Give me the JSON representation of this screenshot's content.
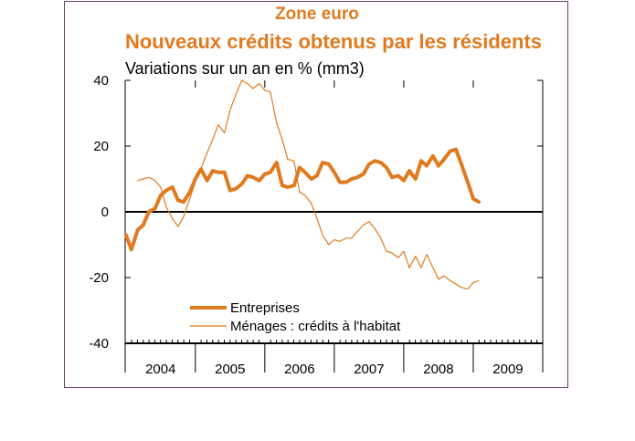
{
  "chart_data": {
    "type": "line",
    "title": "Zone euro",
    "subtitle": "Nouveaux crédits obtenus par les résidents",
    "ylabel": "Variations sur un an en % (mm3)",
    "ylim": [
      -40,
      40
    ],
    "yticks": [
      "40",
      "20",
      "0",
      "-20",
      "-40"
    ],
    "ytick_values": [
      40,
      20,
      0,
      -20,
      -40
    ],
    "xlim": [
      2003.99,
      2010.0
    ],
    "year_labels": [
      "2004",
      "2005",
      "2006",
      "2007",
      "2008",
      "2009"
    ],
    "grid": false,
    "legend_position": "bottom-left",
    "colors": {
      "series": "#e07a1f",
      "title": "#e07a1f",
      "frame": "#6b3a6b"
    },
    "series": [
      {
        "name": "Entreprises",
        "style": "thick",
        "x": [
          2004.0,
          2004.08,
          2004.17,
          2004.25,
          2004.33,
          2004.42,
          2004.5,
          2004.58,
          2004.67,
          2004.75,
          2004.83,
          2004.92,
          2005.0,
          2005.08,
          2005.17,
          2005.25,
          2005.33,
          2005.42,
          2005.5,
          2005.58,
          2005.67,
          2005.75,
          2005.83,
          2005.92,
          2006.0,
          2006.08,
          2006.17,
          2006.25,
          2006.33,
          2006.42,
          2006.5,
          2006.58,
          2006.67,
          2006.75,
          2006.83,
          2006.92,
          2007.0,
          2007.08,
          2007.17,
          2007.25,
          2007.33,
          2007.42,
          2007.5,
          2007.58,
          2007.67,
          2007.75,
          2007.83,
          2007.92,
          2008.0,
          2008.08,
          2008.17,
          2008.25,
          2008.33,
          2008.42,
          2008.5,
          2008.58,
          2008.67,
          2008.75,
          2008.83,
          2008.92,
          2009.0,
          2009.08
        ],
        "values": [
          -7,
          -11.5,
          -5.5,
          -4,
          0,
          1,
          5,
          6.5,
          7.5,
          3.5,
          3,
          6,
          10,
          13,
          9.5,
          12.5,
          12,
          12,
          6.5,
          7,
          8.5,
          11,
          10.5,
          9.5,
          11.5,
          12,
          15,
          8,
          7.5,
          8,
          13.5,
          12,
          10,
          11,
          15,
          14.5,
          12,
          9,
          9,
          10,
          10.5,
          11.5,
          14.5,
          15.5,
          15,
          13.5,
          10.5,
          11,
          9.5,
          12.5,
          10,
          15.5,
          14,
          17,
          14,
          16,
          18.5,
          19,
          14.5,
          9,
          4,
          3
        ]
      },
      {
        "name": "Ménages : crédits à l'habitat",
        "style": "thin",
        "x": [
          2004.17,
          2004.25,
          2004.33,
          2004.42,
          2004.5,
          2004.58,
          2004.67,
          2004.75,
          2004.83,
          2004.92,
          2005.0,
          2005.08,
          2005.17,
          2005.25,
          2005.33,
          2005.42,
          2005.5,
          2005.58,
          2005.67,
          2005.75,
          2005.83,
          2005.92,
          2006.0,
          2006.08,
          2006.17,
          2006.25,
          2006.33,
          2006.42,
          2006.5,
          2006.58,
          2006.67,
          2006.75,
          2006.83,
          2006.92,
          2007.0,
          2007.08,
          2007.17,
          2007.25,
          2007.33,
          2007.42,
          2007.5,
          2007.58,
          2007.67,
          2007.75,
          2007.83,
          2007.92,
          2008.0,
          2008.08,
          2008.17,
          2008.25,
          2008.33,
          2008.42,
          2008.5,
          2008.58,
          2008.67,
          2008.75,
          2008.83,
          2008.92,
          2009.0,
          2009.08
        ],
        "values": [
          9.5,
          10,
          10.5,
          9.5,
          7.5,
          1.5,
          -2,
          -4.5,
          -1.5,
          4,
          9,
          13,
          18,
          22,
          26.5,
          24,
          31,
          35.5,
          40,
          39,
          37.5,
          39,
          37,
          36.5,
          27,
          22,
          16,
          15.5,
          6,
          5,
          2.5,
          -2,
          -7,
          -10,
          -8.5,
          -9,
          -8,
          -8,
          -6,
          -4,
          -3,
          -5,
          -8,
          -12,
          -12.5,
          -14,
          -12,
          -17,
          -13.5,
          -17,
          -13,
          -17,
          -20.5,
          -19.5,
          -21,
          -22,
          -23,
          -23.5,
          -21.5,
          -21
        ]
      }
    ]
  }
}
